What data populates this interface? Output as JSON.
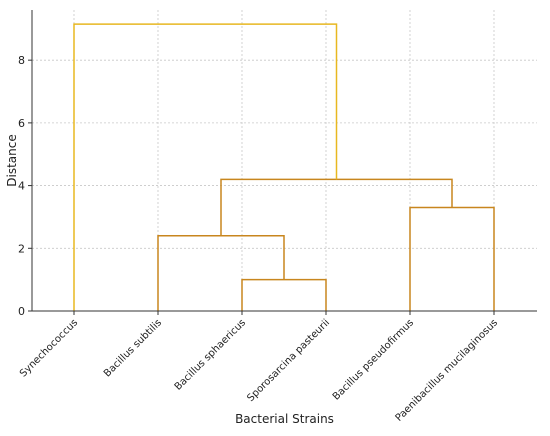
{
  "chart_data": {
    "type": "dendrogram",
    "title": "",
    "xlabel": "Bacterial Strains",
    "ylabel": "Distance",
    "ylim": [
      0,
      9.6
    ],
    "yticks": [
      0,
      2,
      4,
      6,
      8
    ],
    "grid": true,
    "leaves": [
      "Synechococcus",
      "Bacillus subtilis",
      "Bacillus sphaericus",
      "Sporosarcina pasteurii",
      "Bacillus pseudofirmus",
      "Paenibacillus mucilaginosus"
    ],
    "merges": [
      {
        "left": "leaf:2",
        "right": "leaf:3",
        "height": 1.0,
        "color": "#c8861e"
      },
      {
        "left": "leaf:1",
        "right": "node:0",
        "height": 2.4,
        "color": "#c8861e"
      },
      {
        "left": "leaf:4",
        "right": "leaf:5",
        "height": 3.3,
        "color": "#c8861e"
      },
      {
        "left": "node:1",
        "right": "node:2",
        "height": 4.2,
        "color": "#c8861e"
      },
      {
        "left": "leaf:0",
        "right": "node:3",
        "height": 9.15,
        "color": "#e8b820"
      }
    ]
  }
}
